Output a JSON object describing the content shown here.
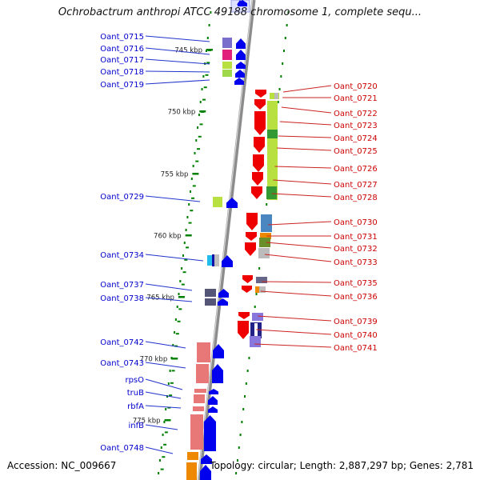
{
  "title": "Ochrobactrum anthropi ATCC 49188 chromosome 1, complete sequ...",
  "accession": "Accession: NC_009667",
  "topology": "Topology: circular; Length: 2,887,297 bp; Genes: 2,781",
  "colors": {
    "backbone": "#8c8c8c",
    "forward_arrow": "#0000ee",
    "reverse_arrow": "#ee0000",
    "forward_label": "#0000cc",
    "reverse_label": "#cc0000",
    "tick": "#008000",
    "leader_line_left": "#2233cc",
    "leader_line_right": "#cc2222"
  },
  "scale_ticks": [
    {
      "label": "745 kbp"
    },
    {
      "label": "750 kbp"
    },
    {
      "label": "755 kbp"
    },
    {
      "label": "760 kbp"
    },
    {
      "label": "765 kbp"
    },
    {
      "label": "770 kbp"
    },
    {
      "label": "775 kbp"
    }
  ],
  "forward_genes": [
    {
      "name": "Oant_0715"
    },
    {
      "name": "Oant_0716"
    },
    {
      "name": "Oant_0717"
    },
    {
      "name": "Oant_0718"
    },
    {
      "name": "Oant_0719"
    },
    {
      "name": "Oant_0729"
    },
    {
      "name": "Oant_0734"
    },
    {
      "name": "Oant_0737"
    },
    {
      "name": "Oant_0738"
    },
    {
      "name": "Oant_0742"
    },
    {
      "name": "Oant_0743"
    },
    {
      "name": "rpsO"
    },
    {
      "name": "truB"
    },
    {
      "name": "rbfA"
    },
    {
      "name": "infB"
    },
    {
      "name": "Oant_0748"
    }
  ],
  "reverse_genes": [
    {
      "name": "Oant_0720"
    },
    {
      "name": "Oant_0721"
    },
    {
      "name": "Oant_0722"
    },
    {
      "name": "Oant_0723"
    },
    {
      "name": "Oant_0724"
    },
    {
      "name": "Oant_0725"
    },
    {
      "name": "Oant_0726"
    },
    {
      "name": "Oant_0727"
    },
    {
      "name": "Oant_0728"
    },
    {
      "name": "Oant_0730"
    },
    {
      "name": "Oant_0731"
    },
    {
      "name": "Oant_0732"
    },
    {
      "name": "Oant_0733"
    },
    {
      "name": "Oant_0735"
    },
    {
      "name": "Oant_0736"
    },
    {
      "name": "Oant_0739"
    },
    {
      "name": "Oant_0740"
    },
    {
      "name": "Oant_0741"
    }
  ]
}
